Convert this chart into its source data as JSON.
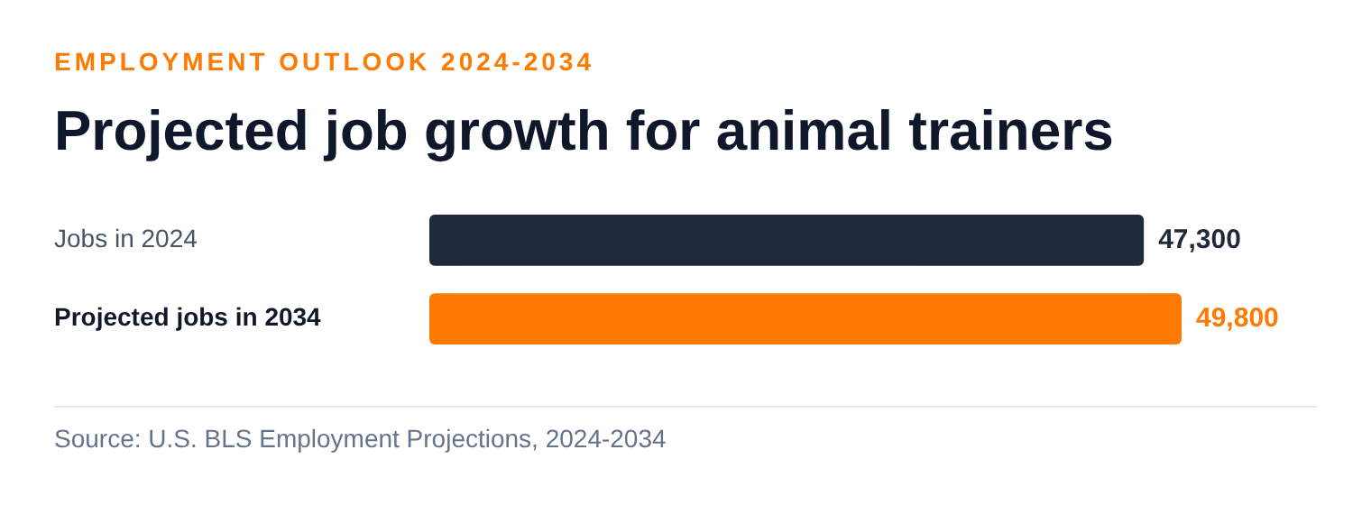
{
  "chart_data": {
    "type": "bar",
    "orientation": "horizontal",
    "subtitle": "EMPLOYMENT OUTLOOK 2024-2034",
    "title": "Projected job growth for animal trainers",
    "categories": [
      "Jobs in 2024",
      "Projected jobs in 2034"
    ],
    "values": [
      47300,
      49800
    ],
    "value_labels": [
      "47,300",
      "49,800"
    ],
    "colors": [
      "#1e293b",
      "#ff7a00"
    ],
    "annotations": [
      "Source: U.S. BLS Employment Projections, 2024-2034"
    ]
  }
}
